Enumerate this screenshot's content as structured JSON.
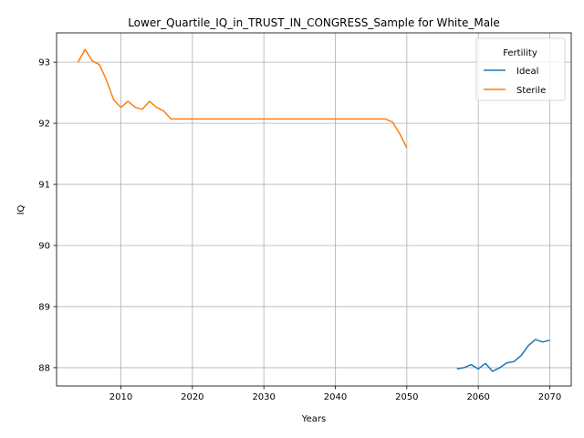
{
  "chart_data": {
    "type": "line",
    "title": "Lower_Quartile_IQ_in_TRUST_IN_CONGRESS_Sample for White_Male",
    "xlabel": "Years",
    "ylabel": "IQ",
    "xlim": [
      2001,
      2073
    ],
    "ylim": [
      87.7,
      93.48
    ],
    "xticks": [
      2010,
      2020,
      2030,
      2040,
      2050,
      2060,
      2070
    ],
    "yticks": [
      88,
      89,
      90,
      91,
      92,
      93
    ],
    "grid": true,
    "legend": {
      "title": "Fertility",
      "position": "top-right"
    },
    "series": [
      {
        "name": "Ideal",
        "color": "#1f77b4",
        "x": [
          2057,
          2058,
          2059,
          2060,
          2061,
          2062,
          2063,
          2064,
          2065,
          2066,
          2067,
          2068,
          2069,
          2070
        ],
        "y": [
          87.98,
          88.0,
          88.05,
          87.98,
          88.07,
          87.94,
          88.0,
          88.08,
          88.1,
          88.2,
          88.36,
          88.46,
          88.42,
          88.45
        ]
      },
      {
        "name": "Sterile",
        "color": "#ff7f0e",
        "x": [
          2004,
          2005,
          2006,
          2007,
          2008,
          2009,
          2010,
          2011,
          2012,
          2013,
          2014,
          2015,
          2016,
          2017,
          2018,
          2019,
          2020,
          2021,
          2022,
          2023,
          2024,
          2025,
          2026,
          2027,
          2028,
          2029,
          2030,
          2031,
          2032,
          2033,
          2034,
          2035,
          2036,
          2037,
          2038,
          2039,
          2040,
          2041,
          2042,
          2043,
          2044,
          2045,
          2046,
          2047,
          2048,
          2049,
          2050
        ],
        "y": [
          93.0,
          93.21,
          93.02,
          92.96,
          92.7,
          92.38,
          92.26,
          92.36,
          92.26,
          92.23,
          92.36,
          92.26,
          92.2,
          92.07,
          92.07,
          92.07,
          92.07,
          92.07,
          92.07,
          92.07,
          92.07,
          92.07,
          92.07,
          92.07,
          92.07,
          92.07,
          92.07,
          92.07,
          92.07,
          92.07,
          92.07,
          92.07,
          92.07,
          92.07,
          92.07,
          92.07,
          92.07,
          92.07,
          92.07,
          92.07,
          92.07,
          92.07,
          92.07,
          92.07,
          92.02,
          91.83,
          91.6
        ]
      }
    ]
  }
}
